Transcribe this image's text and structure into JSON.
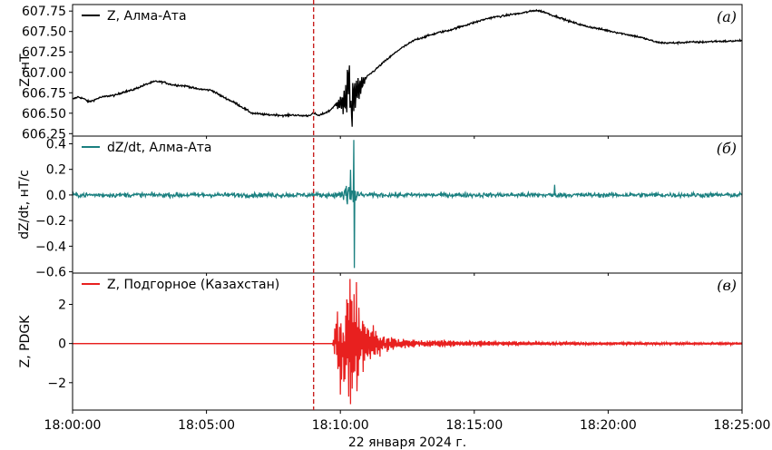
{
  "chart_data": [
    {
      "type": "line",
      "panel_label": "(а)",
      "ylabel": "Z, нТ",
      "ylim": [
        606.22,
        607.83
      ],
      "yticks": [
        "607.75",
        "607.50",
        "607.25",
        "607.00",
        "606.75",
        "606.50",
        "606.25"
      ],
      "ytick_values": [
        607.75,
        607.5,
        607.25,
        607.0,
        606.75,
        606.5,
        606.25
      ],
      "legend_position": "top-left",
      "series": [
        {
          "name": "Z, Алма-Ата",
          "color": "#000000",
          "points_min_value": [
            [
              0.0,
              606.67
            ],
            [
              0.2,
              606.7
            ],
            [
              0.4,
              606.68
            ],
            [
              0.6,
              606.64
            ],
            [
              0.8,
              606.66
            ],
            [
              1.0,
              606.69
            ],
            [
              1.3,
              606.71
            ],
            [
              1.6,
              606.72
            ],
            [
              1.9,
              606.76
            ],
            [
              2.2,
              606.78
            ],
            [
              2.5,
              606.82
            ],
            [
              2.8,
              606.86
            ],
            [
              3.1,
              606.89
            ],
            [
              3.4,
              606.88
            ],
            [
              3.7,
              606.85
            ],
            [
              4.0,
              606.84
            ],
            [
              4.3,
              606.83
            ],
            [
              4.6,
              606.8
            ],
            [
              4.9,
              606.79
            ],
            [
              5.2,
              606.78
            ],
            [
              5.5,
              606.72
            ],
            [
              5.8,
              606.67
            ],
            [
              6.1,
              606.62
            ],
            [
              6.4,
              606.56
            ],
            [
              6.7,
              606.5
            ],
            [
              7.0,
              606.49
            ],
            [
              7.3,
              606.48
            ],
            [
              7.6,
              606.48
            ],
            [
              7.9,
              606.47
            ],
            [
              8.2,
              606.48
            ],
            [
              8.5,
              606.47
            ],
            [
              8.8,
              606.47
            ],
            [
              9.0,
              606.5
            ],
            [
              9.2,
              606.47
            ],
            [
              9.4,
              606.5
            ],
            [
              9.6,
              606.53
            ],
            [
              9.8,
              606.6
            ],
            [
              10.0,
              606.62
            ],
            [
              10.2,
              606.65
            ],
            [
              10.4,
              606.7
            ],
            [
              10.6,
              606.75
            ],
            [
              10.8,
              606.85
            ],
            [
              11.0,
              606.95
            ],
            [
              11.3,
              607.03
            ],
            [
              11.6,
              607.12
            ],
            [
              11.9,
              607.2
            ],
            [
              12.2,
              607.28
            ],
            [
              12.5,
              607.34
            ],
            [
              12.8,
              607.4
            ],
            [
              13.1,
              607.43
            ],
            [
              13.4,
              607.46
            ],
            [
              13.7,
              607.49
            ],
            [
              14.0,
              607.51
            ],
            [
              14.3,
              607.54
            ],
            [
              14.6,
              607.57
            ],
            [
              14.9,
              607.6
            ],
            [
              15.2,
              607.63
            ],
            [
              15.5,
              607.66
            ],
            [
              15.8,
              607.68
            ],
            [
              16.1,
              607.69
            ],
            [
              16.4,
              607.71
            ],
            [
              16.7,
              607.72
            ],
            [
              17.0,
              607.74
            ],
            [
              17.3,
              607.76
            ],
            [
              17.6,
              607.74
            ],
            [
              17.9,
              607.7
            ],
            [
              18.2,
              607.67
            ],
            [
              18.5,
              607.63
            ],
            [
              18.8,
              607.6
            ],
            [
              19.1,
              607.57
            ],
            [
              19.4,
              607.55
            ],
            [
              19.7,
              607.53
            ],
            [
              20.0,
              607.51
            ],
            [
              20.3,
              607.49
            ],
            [
              20.6,
              607.47
            ],
            [
              20.9,
              607.45
            ],
            [
              21.2,
              607.43
            ],
            [
              21.5,
              607.4
            ],
            [
              21.8,
              607.37
            ],
            [
              22.1,
              607.36
            ],
            [
              22.5,
              607.36
            ],
            [
              23.0,
              607.37
            ],
            [
              23.5,
              607.37
            ],
            [
              24.0,
              607.38
            ],
            [
              24.5,
              607.38
            ],
            [
              25.0,
              607.39
            ]
          ]
        }
      ]
    },
    {
      "type": "line",
      "panel_label": "(б)",
      "ylabel": "dZ/dt, нТ/с",
      "ylim": [
        -0.61,
        0.46
      ],
      "yticks": [
        "0.4",
        "0.2",
        "0.0",
        "−0.2",
        "−0.4",
        "−0.6"
      ],
      "ytick_values": [
        0.4,
        0.2,
        0.0,
        -0.2,
        -0.4,
        -0.6
      ],
      "legend_position": "top-left",
      "series": [
        {
          "name": "dZ/dt, Алма-Ата",
          "color": "#1b8080"
        }
      ]
    },
    {
      "type": "line",
      "panel_label": "(в)",
      "ylabel": "Z, PDGK",
      "ylim": [
        -3.4,
        3.6
      ],
      "yticks": [
        "2",
        "0",
        "−2"
      ],
      "ytick_values": [
        2,
        0,
        -2
      ],
      "legend_position": "top-left",
      "series": [
        {
          "name": "Z, Подгорное (Казахстан)",
          "color": "#e8201f"
        }
      ]
    }
  ],
  "x_axis": {
    "range_min": [
      0,
      25
    ],
    "ticks": [
      "18:00:00",
      "18:05:00",
      "18:10:00",
      "18:15:00",
      "18:20:00",
      "18:25:00"
    ],
    "tick_values_min": [
      0,
      5,
      10,
      15,
      20,
      25
    ],
    "label": "22 января 2024 г."
  },
  "event_marker": {
    "time_min": 9.0,
    "color": "#c8201f",
    "style": "dashed"
  }
}
